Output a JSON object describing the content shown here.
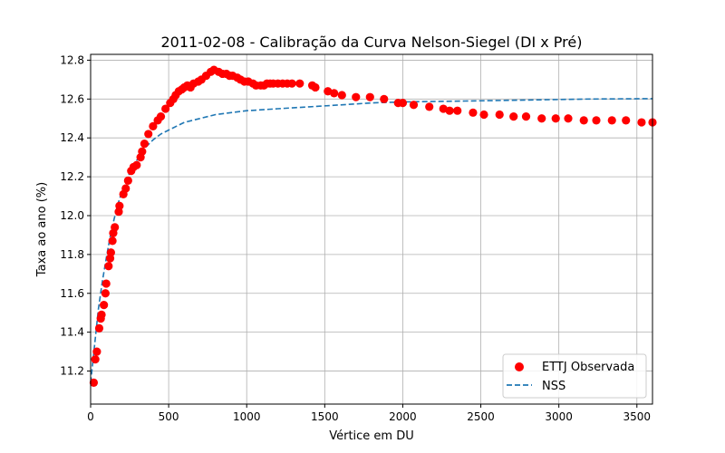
{
  "chart_data": {
    "type": "scatter",
    "title": "2011-02-08 - Calibração da Curva Nelson-Siegel (DI x Pré)",
    "xlabel": "Vértice em DU",
    "ylabel": "Taxa ao ano (%)",
    "xlim": [
      0,
      3600
    ],
    "ylim": [
      11.03,
      12.83
    ],
    "xticks": [
      0,
      500,
      1000,
      1500,
      2000,
      2500,
      3000,
      3500
    ],
    "yticks": [
      11.2,
      11.4,
      11.6,
      11.8,
      12.0,
      12.2,
      12.4,
      12.6,
      12.8
    ],
    "grid": true,
    "legend_position": "lower-right",
    "series": [
      {
        "name": "ETTJ Observada",
        "kind": "scatter",
        "color": "#ff0000",
        "points": [
          [
            20,
            11.14
          ],
          [
            30,
            11.26
          ],
          [
            40,
            11.3
          ],
          [
            55,
            11.42
          ],
          [
            65,
            11.47
          ],
          [
            70,
            11.49
          ],
          [
            85,
            11.54
          ],
          [
            95,
            11.6
          ],
          [
            100,
            11.65
          ],
          [
            115,
            11.74
          ],
          [
            125,
            11.78
          ],
          [
            130,
            11.81
          ],
          [
            140,
            11.87
          ],
          [
            145,
            11.91
          ],
          [
            155,
            11.94
          ],
          [
            180,
            12.02
          ],
          [
            185,
            12.05
          ],
          [
            210,
            12.11
          ],
          [
            225,
            12.14
          ],
          [
            240,
            12.18
          ],
          [
            260,
            12.23
          ],
          [
            275,
            12.25
          ],
          [
            295,
            12.26
          ],
          [
            320,
            12.3
          ],
          [
            330,
            12.33
          ],
          [
            345,
            12.37
          ],
          [
            370,
            12.42
          ],
          [
            400,
            12.46
          ],
          [
            430,
            12.49
          ],
          [
            450,
            12.51
          ],
          [
            480,
            12.55
          ],
          [
            510,
            12.58
          ],
          [
            530,
            12.6
          ],
          [
            545,
            12.62
          ],
          [
            565,
            12.64
          ],
          [
            585,
            12.65
          ],
          [
            600,
            12.66
          ],
          [
            620,
            12.67
          ],
          [
            640,
            12.66
          ],
          [
            660,
            12.68
          ],
          [
            690,
            12.69
          ],
          [
            710,
            12.7
          ],
          [
            740,
            12.72
          ],
          [
            770,
            12.74
          ],
          [
            790,
            12.75
          ],
          [
            820,
            12.74
          ],
          [
            845,
            12.73
          ],
          [
            870,
            12.73
          ],
          [
            890,
            12.72
          ],
          [
            910,
            12.72
          ],
          [
            940,
            12.71
          ],
          [
            960,
            12.7
          ],
          [
            985,
            12.69
          ],
          [
            1010,
            12.69
          ],
          [
            1040,
            12.68
          ],
          [
            1060,
            12.67
          ],
          [
            1090,
            12.67
          ],
          [
            1110,
            12.67
          ],
          [
            1130,
            12.68
          ],
          [
            1150,
            12.68
          ],
          [
            1170,
            12.68
          ],
          [
            1200,
            12.68
          ],
          [
            1230,
            12.68
          ],
          [
            1260,
            12.68
          ],
          [
            1290,
            12.68
          ],
          [
            1340,
            12.68
          ],
          [
            1420,
            12.67
          ],
          [
            1440,
            12.66
          ],
          [
            1520,
            12.64
          ],
          [
            1560,
            12.63
          ],
          [
            1610,
            12.62
          ],
          [
            1700,
            12.61
          ],
          [
            1790,
            12.61
          ],
          [
            1880,
            12.6
          ],
          [
            1970,
            12.58
          ],
          [
            2000,
            12.58
          ],
          [
            2070,
            12.57
          ],
          [
            2170,
            12.56
          ],
          [
            2260,
            12.55
          ],
          [
            2300,
            12.54
          ],
          [
            2350,
            12.54
          ],
          [
            2450,
            12.53
          ],
          [
            2520,
            12.52
          ],
          [
            2620,
            12.52
          ],
          [
            2710,
            12.51
          ],
          [
            2790,
            12.51
          ],
          [
            2890,
            12.5
          ],
          [
            2980,
            12.5
          ],
          [
            3060,
            12.5
          ],
          [
            3160,
            12.49
          ],
          [
            3240,
            12.49
          ],
          [
            3340,
            12.49
          ],
          [
            3430,
            12.49
          ],
          [
            3530,
            12.48
          ],
          [
            3600,
            12.48
          ]
        ]
      },
      {
        "name": "NSS",
        "kind": "line",
        "style": "dashed",
        "color": "#1f77b4",
        "points": [
          [
            0,
            11.14
          ],
          [
            25,
            11.33
          ],
          [
            50,
            11.52
          ],
          [
            75,
            11.66
          ],
          [
            100,
            11.78
          ],
          [
            125,
            11.89
          ],
          [
            150,
            11.98
          ],
          [
            175,
            12.06
          ],
          [
            200,
            12.12
          ],
          [
            225,
            12.17
          ],
          [
            250,
            12.22
          ],
          [
            275,
            12.26
          ],
          [
            300,
            12.29
          ],
          [
            325,
            12.32
          ],
          [
            350,
            12.35
          ],
          [
            400,
            12.39
          ],
          [
            450,
            12.42
          ],
          [
            500,
            12.44
          ],
          [
            550,
            12.46
          ],
          [
            600,
            12.48
          ],
          [
            700,
            12.5
          ],
          [
            800,
            12.52
          ],
          [
            900,
            12.53
          ],
          [
            1000,
            12.54
          ],
          [
            1200,
            12.55
          ],
          [
            1400,
            12.56
          ],
          [
            1600,
            12.57
          ],
          [
            1800,
            12.58
          ],
          [
            2000,
            12.585
          ],
          [
            2400,
            12.59
          ],
          [
            2800,
            12.595
          ],
          [
            3200,
            12.6
          ],
          [
            3600,
            12.602
          ]
        ]
      }
    ]
  }
}
